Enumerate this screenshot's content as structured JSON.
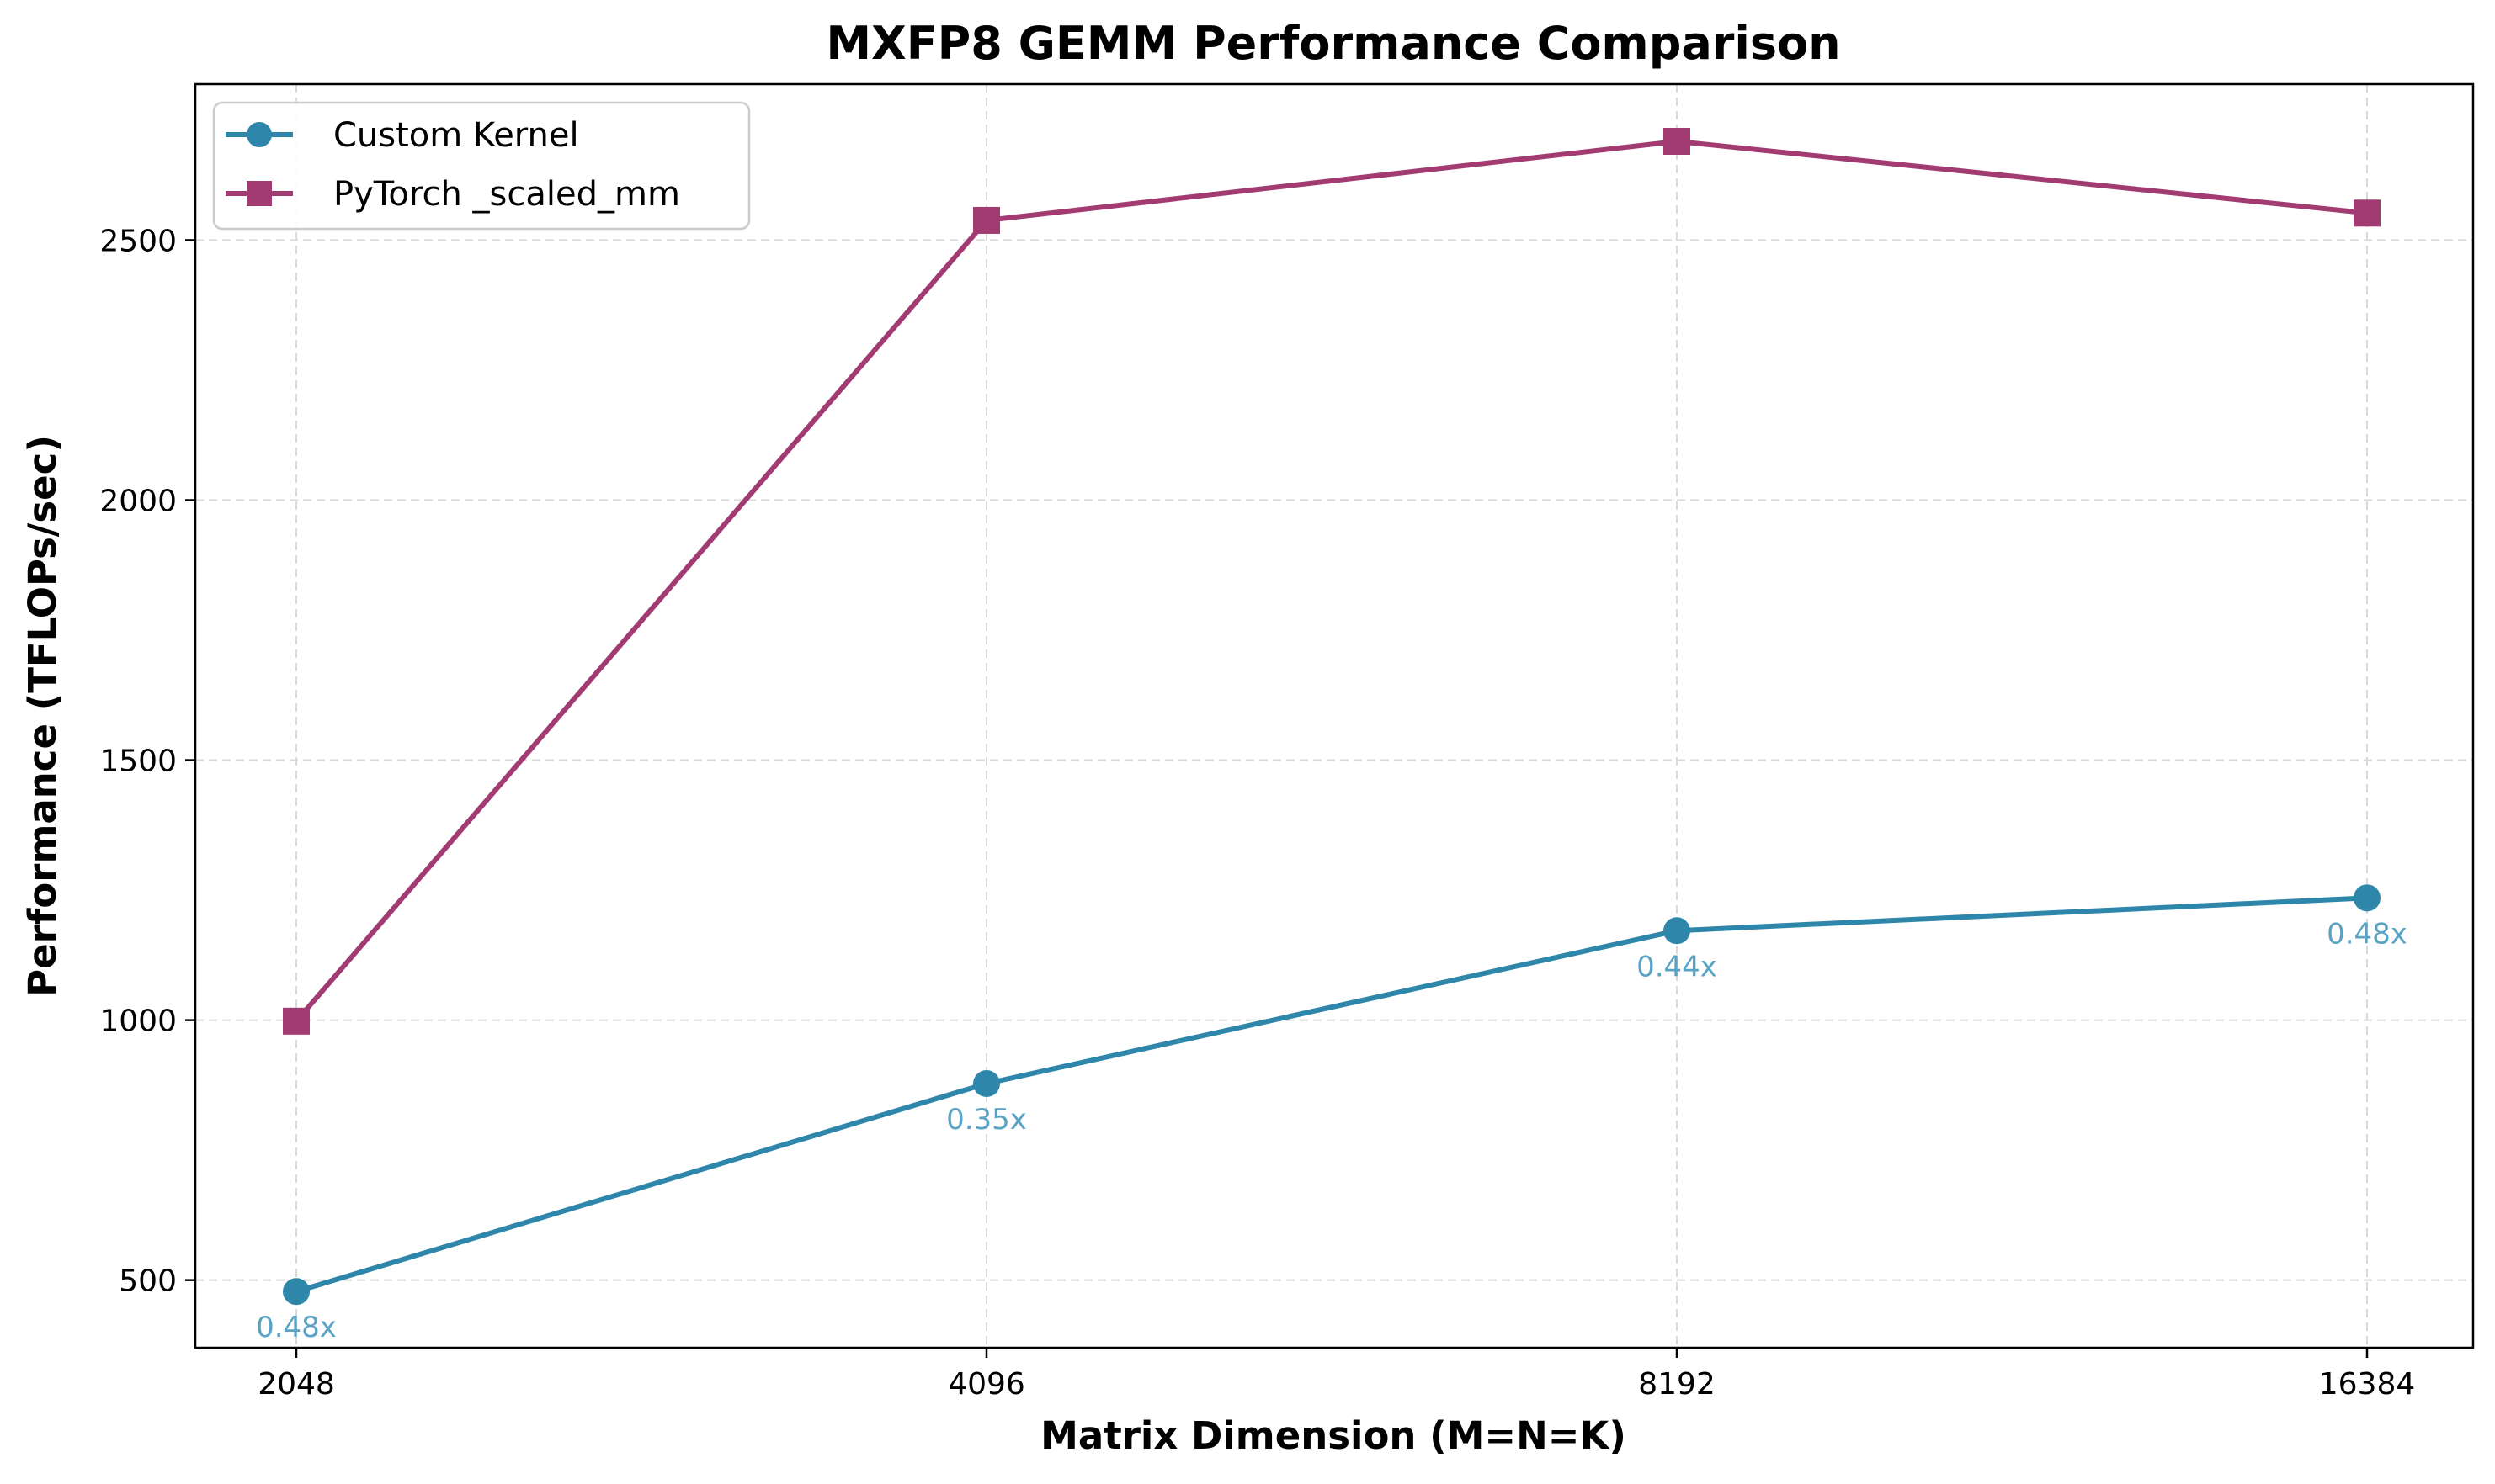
{
  "chart_data": {
    "type": "line",
    "title": "MXFP8 GEMM Performance Comparison",
    "xlabel": "Matrix Dimension (M=N=K)",
    "ylabel": "Performance (TFLOPs/sec)",
    "categories": [
      "2048",
      "4096",
      "8192",
      "16384"
    ],
    "y_ticks": [
      "500",
      "1000",
      "1500",
      "2000",
      "2500"
    ],
    "ylim": [
      370,
      2800
    ],
    "grid": true,
    "legend_position": "top-left",
    "series": [
      {
        "name": "Custom Kernel",
        "marker": "circle",
        "color": "#2e86ab",
        "values": [
          478,
          878,
          1172,
          1235
        ]
      },
      {
        "name": "PyTorch _scaled_mm",
        "marker": "square",
        "color": "#a23b72",
        "values": [
          998,
          2538,
          2690,
          2552
        ]
      }
    ],
    "annotations": {
      "color": "#5aa3c4",
      "labels": [
        "0.48x",
        "0.35x",
        "0.44x",
        "0.48x"
      ]
    }
  }
}
